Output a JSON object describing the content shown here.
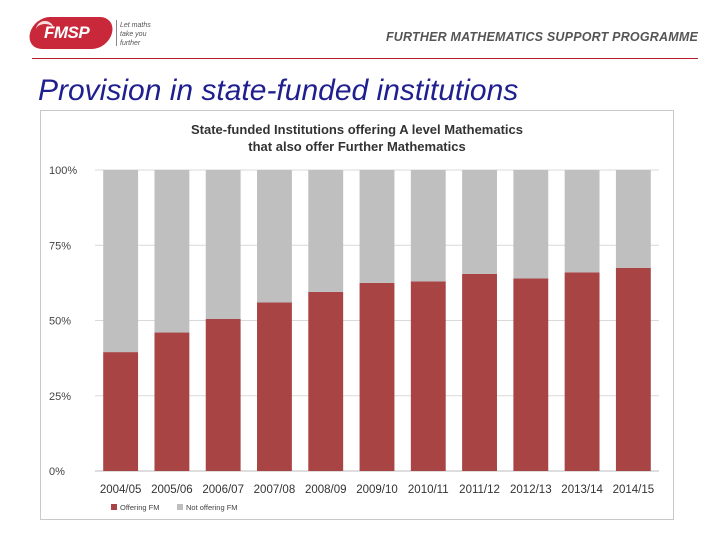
{
  "header": {
    "logo_text": "FMSP",
    "tagline_line1": "Let maths",
    "tagline_line2": "take you further",
    "programme": "FURTHER MATHEMATICS SUPPORT PROGRAMME"
  },
  "slide": {
    "title": "Provision in state-funded institutions"
  },
  "chart_data": {
    "type": "bar",
    "stacked": true,
    "title_line1": "State-funded Institutions offering A level Mathematics",
    "title_line2": "that also offer Further Mathematics",
    "categories": [
      "2004/05",
      "2005/06",
      "2006/07",
      "2007/08",
      "2008/09",
      "2009/10",
      "2010/11",
      "2011/12",
      "2012/13",
      "2013/14",
      "2014/15"
    ],
    "series": [
      {
        "name": "Offering FM",
        "color": "#a84444",
        "values": [
          39.5,
          46,
          50.5,
          56,
          59.5,
          62.5,
          63,
          65.5,
          64,
          66,
          67.5
        ]
      },
      {
        "name": "Not offering FM",
        "color": "#bfbfbf",
        "values": [
          60.5,
          54,
          49.5,
          44,
          40.5,
          37.5,
          37,
          34.5,
          36,
          34,
          32.5
        ]
      }
    ],
    "y_ticks": [
      "0%",
      "25%",
      "50%",
      "75%",
      "100%"
    ],
    "ylim": [
      0,
      100
    ],
    "legend_position": "bottom-left"
  }
}
